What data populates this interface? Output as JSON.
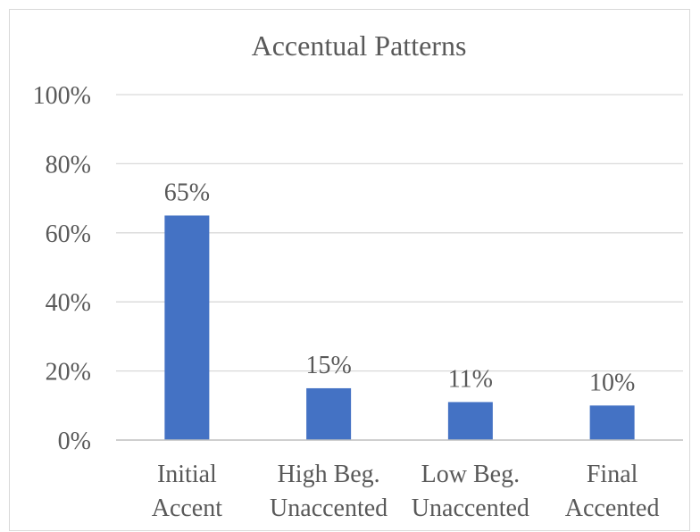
{
  "chart_data": {
    "type": "bar",
    "title": "Accentual Patterns",
    "categories": [
      [
        "Initial",
        "Accent"
      ],
      [
        "High Beg.",
        "Unaccented"
      ],
      [
        "Low Beg.",
        "Unaccented"
      ],
      [
        "Final",
        "Accented"
      ]
    ],
    "values": [
      65,
      15,
      11,
      10
    ],
    "data_labels": [
      "65%",
      "15%",
      "11%",
      "10%"
    ],
    "ylim": [
      0,
      100
    ],
    "y_ticks": [
      0,
      20,
      40,
      60,
      80,
      100
    ],
    "y_tick_labels": [
      "0%",
      "20%",
      "40%",
      "60%",
      "80%",
      "100%"
    ],
    "grid": true,
    "legend": "none",
    "xlabel": "",
    "ylabel": "",
    "colors": {
      "bar": "#4472c4",
      "text": "#595959",
      "grid": "#d9d9d9"
    }
  }
}
